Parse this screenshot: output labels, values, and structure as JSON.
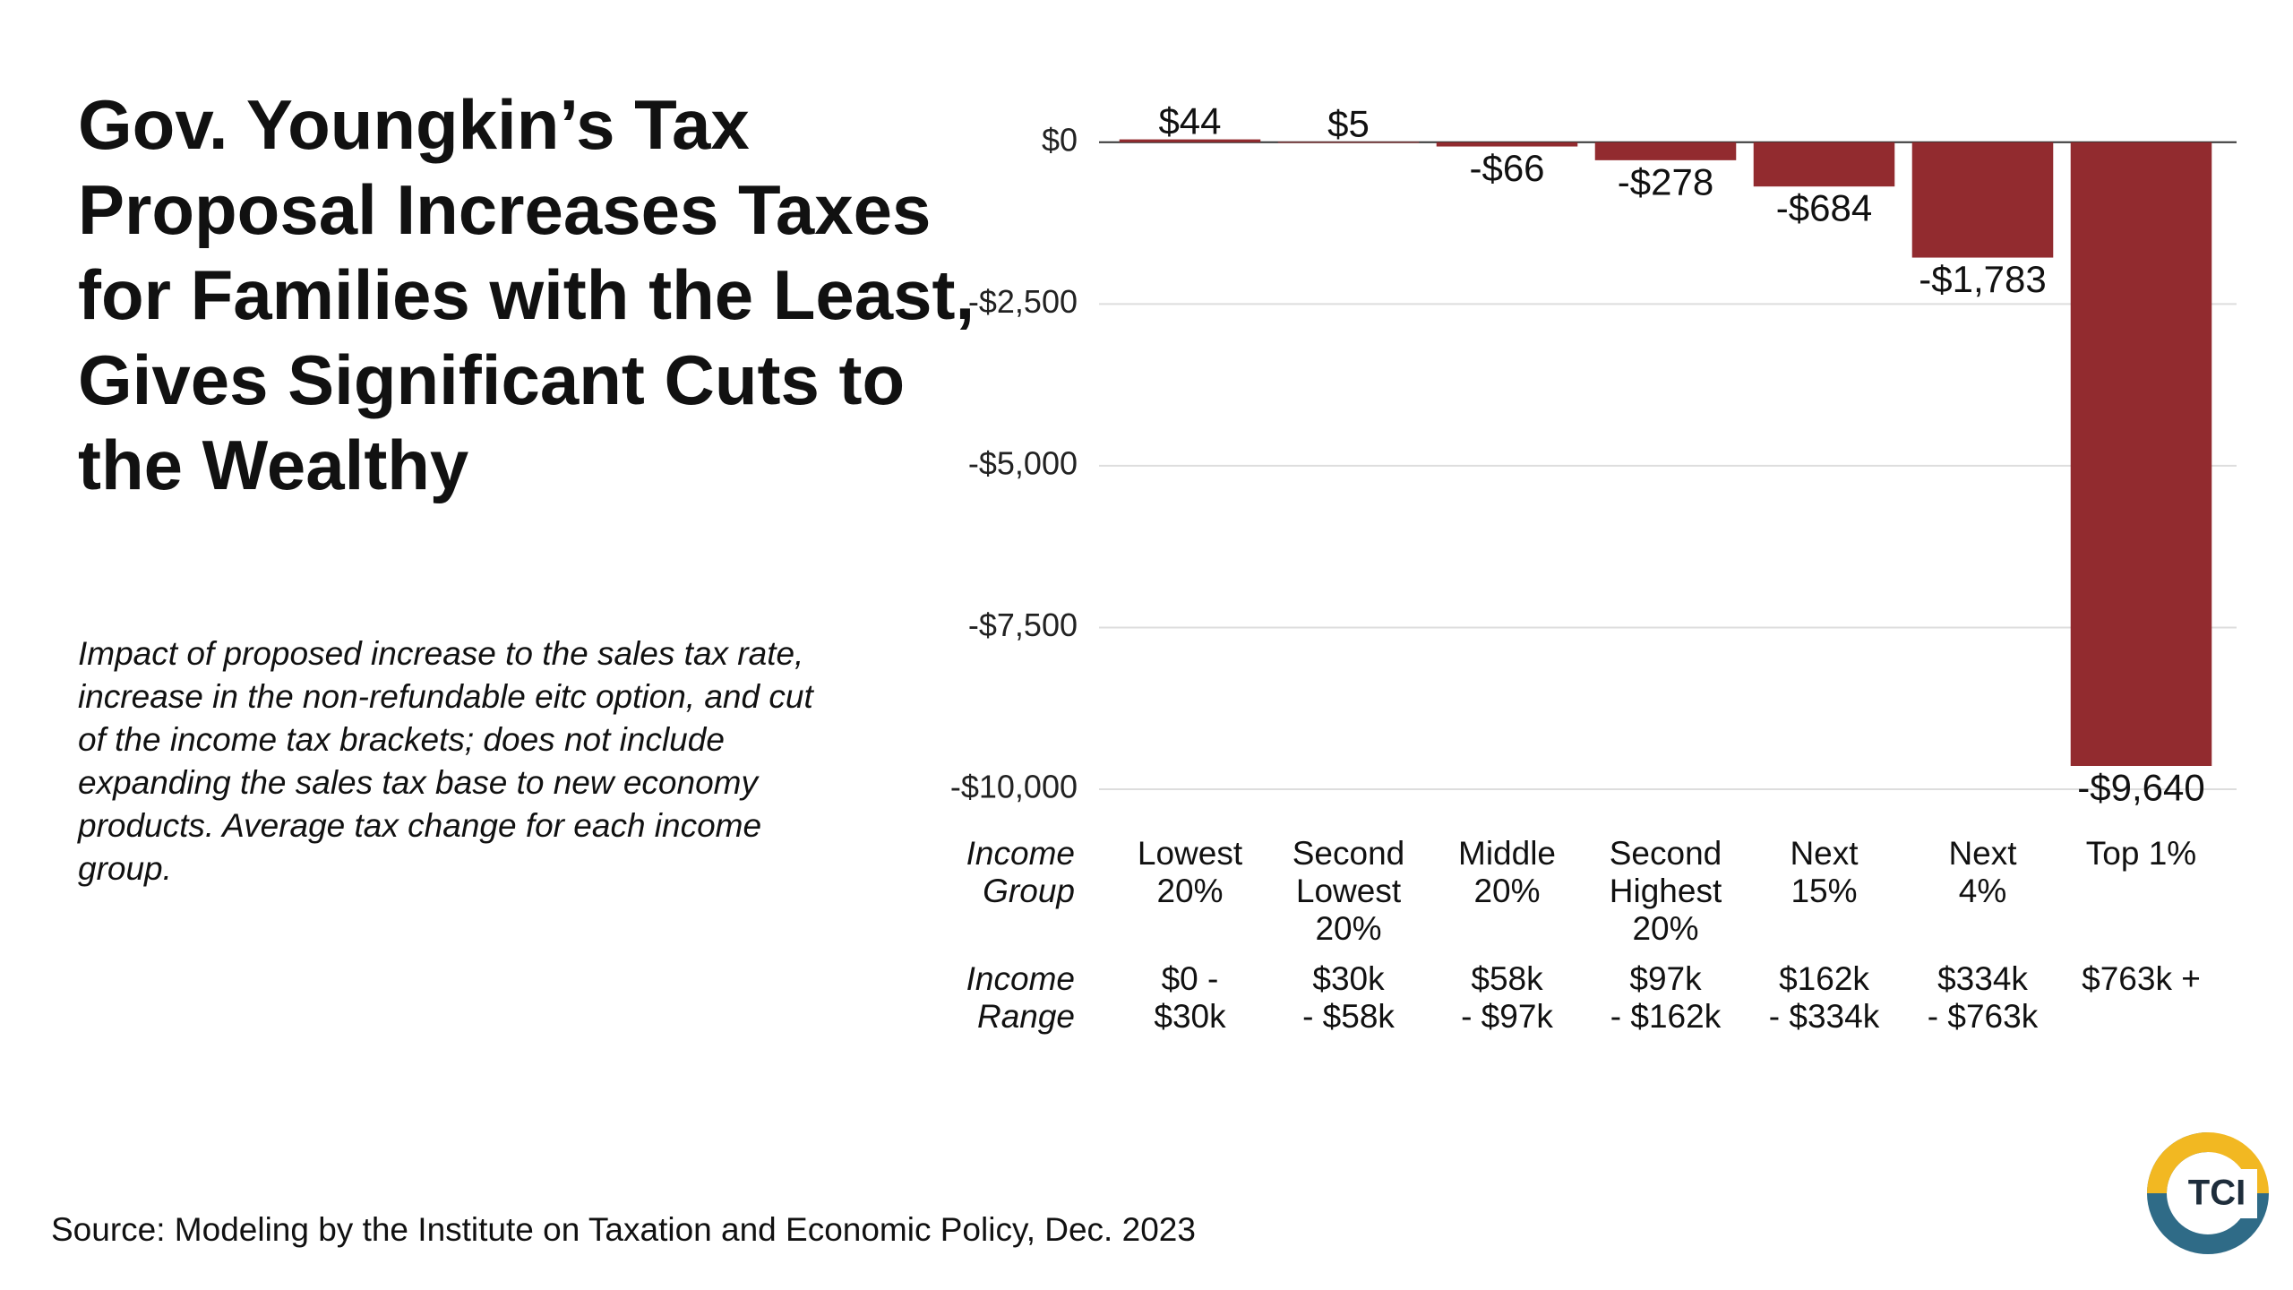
{
  "chart_data": {
    "type": "bar",
    "title": "Gov. Youngkin’s Tax Proposal Increases Taxes for Families with the Least, Gives Significant Cuts to the Wealthy",
    "subtitle": "Impact of proposed increase to the sales tax rate, increase in the non-refundable eitc option, and cut of the income tax brackets; does not include expanding the sales tax base to new economy products. Average tax change for each income group.",
    "x_label": "Income\nGroup",
    "range_label": "Income\nRange",
    "categories": [
      "Lowest\n20%",
      "Second\nLowest\n20%",
      "Middle\n20%",
      "Second\nHighest\n20%",
      "Next\n15%",
      "Next\n4%",
      "Top 1%"
    ],
    "income_ranges": [
      "$0 -\n$30k",
      "$30k\n- $58k",
      "$58k\n- $97k",
      "$97k\n- $162k",
      "$162k\n- $334k",
      "$334k\n- $763k",
      "$763k +"
    ],
    "values": [
      44,
      5,
      -66,
      -278,
      -684,
      -1783,
      -9640
    ],
    "value_labels": [
      "$44",
      "$5",
      "-$66",
      "-$278",
      "-$684",
      "-$1,783",
      "-$9,640"
    ],
    "color": "#922b2f",
    "ylim": [
      -10000,
      800
    ],
    "yticks": [
      {
        "value": 0,
        "label": "$0"
      },
      {
        "value": -2500,
        "label": "-$2,500"
      },
      {
        "value": -5000,
        "label": "-$5,000"
      },
      {
        "value": -7500,
        "label": "-$7,500"
      },
      {
        "value": -10000,
        "label": "-$10,000"
      }
    ],
    "grid": true,
    "source": "Source: Modeling by the Institute on Taxation and Economic Policy, Dec. 2023",
    "logo": "TCI"
  }
}
